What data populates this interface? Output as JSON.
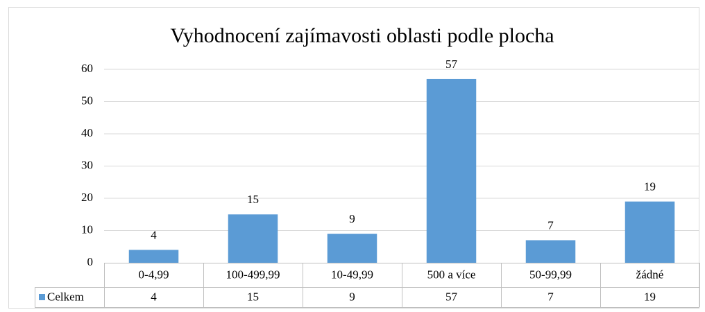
{
  "chart_data": {
    "type": "bar",
    "title": "Vyhodnocení zajímavosti  oblasti podle plocha",
    "categories": [
      "0-4,99",
      "100-499,99",
      "10-49,99",
      "500 a více",
      "50-99,99",
      "žádné"
    ],
    "series": [
      {
        "name": "Celkem",
        "color": "#5b9bd5",
        "values": [
          4,
          15,
          9,
          57,
          7,
          19
        ]
      }
    ],
    "ylim": [
      0,
      60
    ],
    "yticks": [
      0,
      10,
      20,
      30,
      40,
      50,
      60
    ],
    "grid": true,
    "data_labels": true,
    "data_table": true
  }
}
